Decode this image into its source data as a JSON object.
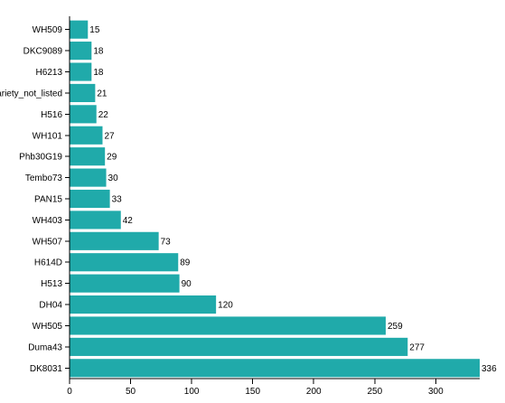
{
  "chart_data": {
    "type": "bar",
    "orientation": "horizontal",
    "title": "",
    "xlabel": "",
    "ylabel": "",
    "categories": [
      "WH509",
      "DKC9089",
      "H6213",
      "Variety_not_listed",
      "H516",
      "WH101",
      "Phb30G19",
      "Tembo73",
      "PAN15",
      "WH403",
      "WH507",
      "H614D",
      "H513",
      "DH04",
      "WH505",
      "Duma43",
      "DK8031"
    ],
    "values": [
      15,
      18,
      18,
      21,
      22,
      27,
      29,
      30,
      33,
      42,
      73,
      89,
      90,
      120,
      259,
      277,
      336
    ],
    "xlim": [
      0,
      336
    ],
    "xticks": [
      0,
      50,
      100,
      150,
      200,
      250,
      300
    ],
    "bar_color": "#20aaaa",
    "value_labels": true,
    "grid": false,
    "legend": "none"
  }
}
